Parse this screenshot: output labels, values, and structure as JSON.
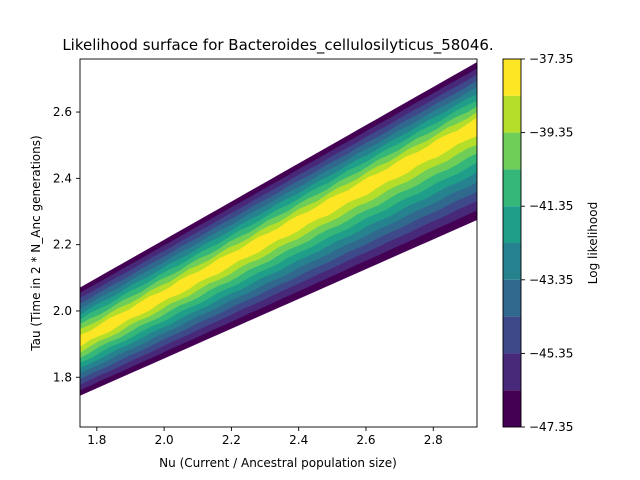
{
  "chart_data": {
    "type": "contour",
    "title": "Likelihood surface for Bacteroides_cellulosilyticus_58046.",
    "xlabel": "Nu (Current / Ancestral population size)",
    "ylabel": "Tau (Time in 2 * N_Anc generations)",
    "xlim": [
      1.75,
      2.93
    ],
    "ylim": [
      1.65,
      2.76
    ],
    "xticks": [
      1.8,
      2.0,
      2.2,
      2.4,
      2.6,
      2.8
    ],
    "xtick_labels": [
      "1.8",
      "2.0",
      "2.2",
      "2.4",
      "2.6",
      "2.8"
    ],
    "yticks": [
      1.8,
      2.0,
      2.2,
      2.4,
      2.6
    ],
    "ytick_labels": [
      "1.8",
      "2.0",
      "2.2",
      "2.4",
      "2.6"
    ],
    "grid": false,
    "ridge": {
      "x": [
        1.75,
        2.93
      ],
      "tau_max": [
        1.91,
        2.56
      ],
      "description_of_fill": "high-likelihood ridge running diagonally from lower-left to upper-right"
    },
    "band_edges": {
      "x": [
        1.75,
        2.93
      ],
      "upper_edge": [
        2.07,
        2.75
      ],
      "lower_edge": [
        1.745,
        2.275
      ]
    },
    "colorbar": {
      "label": "Log likelihood",
      "levels": [
        -47.35,
        -46.35,
        -45.35,
        -44.35,
        -43.35,
        -42.35,
        -41.35,
        -40.35,
        -39.35,
        -38.35,
        -37.35
      ],
      "colors": [
        "#440154",
        "#482878",
        "#3e4989",
        "#31688e",
        "#26828e",
        "#1f9e89",
        "#35b779",
        "#6ece58",
        "#b5de2b",
        "#fde725"
      ],
      "tick_values": [
        -37.35,
        -39.35,
        -41.35,
        -43.35,
        -45.35,
        -47.35
      ],
      "tick_labels": [
        "−37.35",
        "−39.35",
        "−41.35",
        "−43.35",
        "−45.35",
        "−47.35"
      ]
    }
  }
}
